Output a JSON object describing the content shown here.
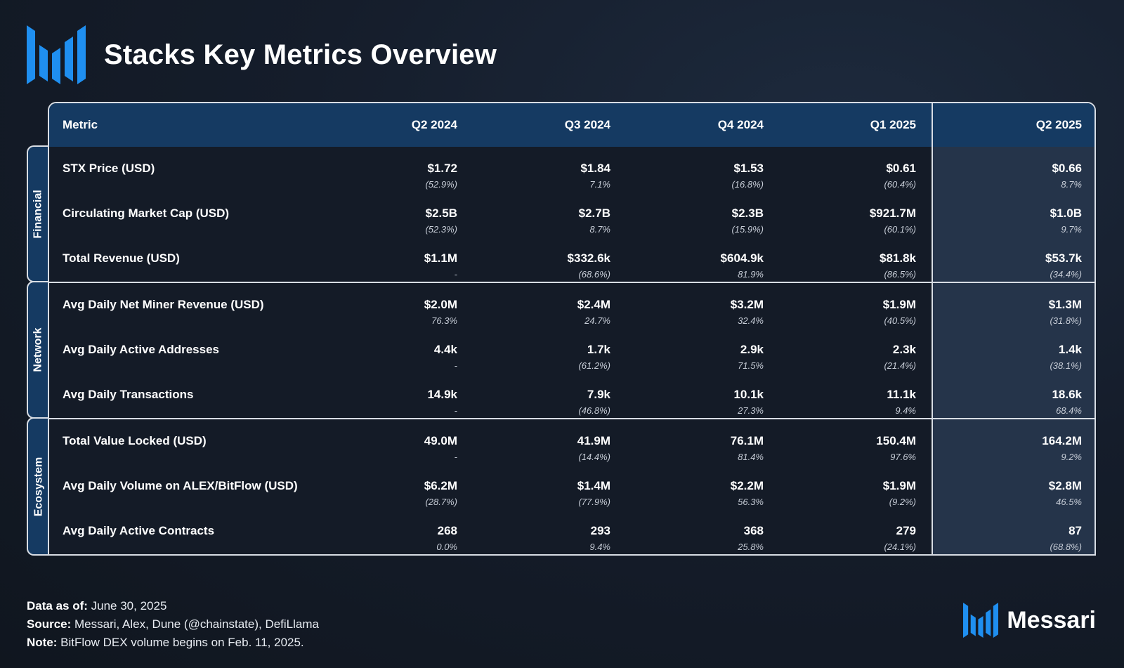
{
  "title": "Stacks Key Metrics Overview",
  "colors": {
    "accent_blue": "#1f8ff0",
    "header_bg": "#153a62",
    "highlight_bg": "#25344a"
  },
  "table": {
    "headers": [
      "Metric",
      "Q2 2024",
      "Q3 2024",
      "Q4 2024",
      "Q1 2025",
      "Q2 2025"
    ],
    "groups": [
      "Financial",
      "Network",
      "Ecosystem"
    ],
    "rows": [
      {
        "metric": "STX Price (USD)",
        "cells": [
          {
            "v": "$1.72",
            "c": "(52.9%)"
          },
          {
            "v": "$1.84",
            "c": "7.1%"
          },
          {
            "v": "$1.53",
            "c": "(16.8%)"
          },
          {
            "v": "$0.61",
            "c": "(60.4%)"
          },
          {
            "v": "$0.66",
            "c": "8.7%"
          }
        ]
      },
      {
        "metric": "Circulating Market Cap (USD)",
        "cells": [
          {
            "v": "$2.5B",
            "c": "(52.3%)"
          },
          {
            "v": "$2.7B",
            "c": "8.7%"
          },
          {
            "v": "$2.3B",
            "c": "(15.9%)"
          },
          {
            "v": "$921.7M",
            "c": "(60.1%)"
          },
          {
            "v": "$1.0B",
            "c": "9.7%"
          }
        ]
      },
      {
        "metric": "Total Revenue (USD)",
        "cells": [
          {
            "v": "$1.1M",
            "c": "-"
          },
          {
            "v": "$332.6k",
            "c": "(68.6%)"
          },
          {
            "v": "$604.9k",
            "c": "81.9%"
          },
          {
            "v": "$81.8k",
            "c": "(86.5%)"
          },
          {
            "v": "$53.7k",
            "c": "(34.4%)"
          }
        ]
      },
      {
        "metric": "Avg Daily Net Miner Revenue (USD)",
        "cells": [
          {
            "v": "$2.0M",
            "c": "76.3%"
          },
          {
            "v": "$2.4M",
            "c": "24.7%"
          },
          {
            "v": "$3.2M",
            "c": "32.4%"
          },
          {
            "v": "$1.9M",
            "c": "(40.5%)"
          },
          {
            "v": "$1.3M",
            "c": "(31.8%)"
          }
        ]
      },
      {
        "metric": "Avg Daily Active Addresses",
        "cells": [
          {
            "v": "4.4k",
            "c": "-"
          },
          {
            "v": "1.7k",
            "c": "(61.2%)"
          },
          {
            "v": "2.9k",
            "c": "71.5%"
          },
          {
            "v": "2.3k",
            "c": "(21.4%)"
          },
          {
            "v": "1.4k",
            "c": "(38.1%)"
          }
        ]
      },
      {
        "metric": "Avg Daily Transactions",
        "cells": [
          {
            "v": "14.9k",
            "c": "-"
          },
          {
            "v": "7.9k",
            "c": "(46.8%)"
          },
          {
            "v": "10.1k",
            "c": "27.3%"
          },
          {
            "v": "11.1k",
            "c": "9.4%"
          },
          {
            "v": "18.6k",
            "c": "68.4%"
          }
        ]
      },
      {
        "metric": "Total Value Locked (USD)",
        "cells": [
          {
            "v": "49.0M",
            "c": "-"
          },
          {
            "v": "41.9M",
            "c": "(14.4%)"
          },
          {
            "v": "76.1M",
            "c": "81.4%"
          },
          {
            "v": "150.4M",
            "c": "97.6%"
          },
          {
            "v": "164.2M",
            "c": "9.2%"
          }
        ]
      },
      {
        "metric": "Avg Daily Volume on ALEX/BitFlow (USD)",
        "cells": [
          {
            "v": "$6.2M",
            "c": "(28.7%)"
          },
          {
            "v": "$1.4M",
            "c": "(77.9%)"
          },
          {
            "v": "$2.2M",
            "c": "56.3%"
          },
          {
            "v": "$1.9M",
            "c": "(9.2%)"
          },
          {
            "v": "$2.8M",
            "c": "46.5%"
          }
        ]
      },
      {
        "metric": "Avg Daily Active Contracts",
        "cells": [
          {
            "v": "268",
            "c": "0.0%"
          },
          {
            "v": "293",
            "c": "9.4%"
          },
          {
            "v": "368",
            "c": "25.8%"
          },
          {
            "v": "279",
            "c": "(24.1%)"
          },
          {
            "v": "87",
            "c": "(68.8%)"
          }
        ]
      }
    ]
  },
  "footer": {
    "data_as_of_label": "Data as of:",
    "data_as_of": " June 30, 2025",
    "source_label": "Source:",
    "source": " Messari, Alex, Dune (@chainstate), DefiLlama",
    "note_label": "Note:",
    "note": " BitFlow DEX volume begins on Feb. 11, 2025."
  },
  "brand": {
    "name": "Messari",
    "logo_icon": "messari-logo-icon"
  }
}
